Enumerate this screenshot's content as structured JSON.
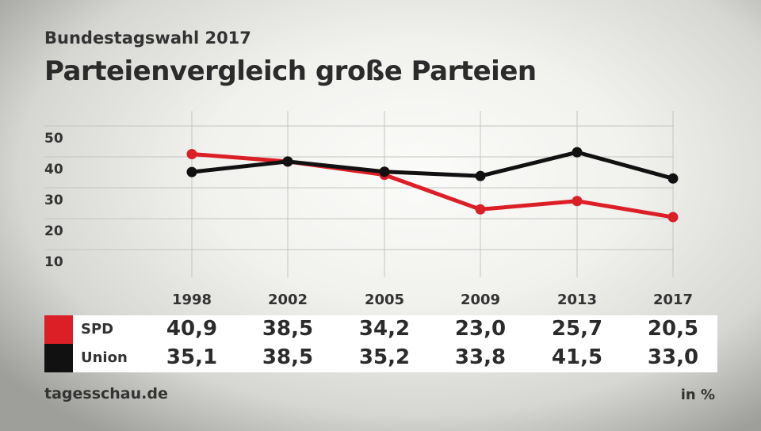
{
  "header": {
    "subtitle": "Bundestagswahl 2017",
    "title": "Parteienvergleich große Parteien"
  },
  "footer": {
    "source": "tagesschau.de",
    "unit": "in %"
  },
  "chart_data": {
    "type": "line",
    "categories": [
      "1998",
      "2002",
      "2005",
      "2009",
      "2013",
      "2017"
    ],
    "yticks": [
      "10",
      "20",
      "30",
      "40",
      "50"
    ],
    "ylim": [
      0,
      50
    ],
    "grid": true,
    "series": [
      {
        "name": "SPD",
        "color": "#dc1f26",
        "values": [
          40.9,
          38.5,
          34.2,
          23.0,
          25.7,
          20.5
        ],
        "labels": [
          "40,9",
          "38,5",
          "34,2",
          "23,0",
          "25,7",
          "20,5"
        ]
      },
      {
        "name": "Union",
        "color": "#111111",
        "values": [
          35.1,
          38.5,
          35.2,
          33.8,
          41.5,
          33.0
        ],
        "labels": [
          "35,1",
          "38,5",
          "35,2",
          "33,8",
          "41,5",
          "33,0"
        ]
      }
    ]
  }
}
